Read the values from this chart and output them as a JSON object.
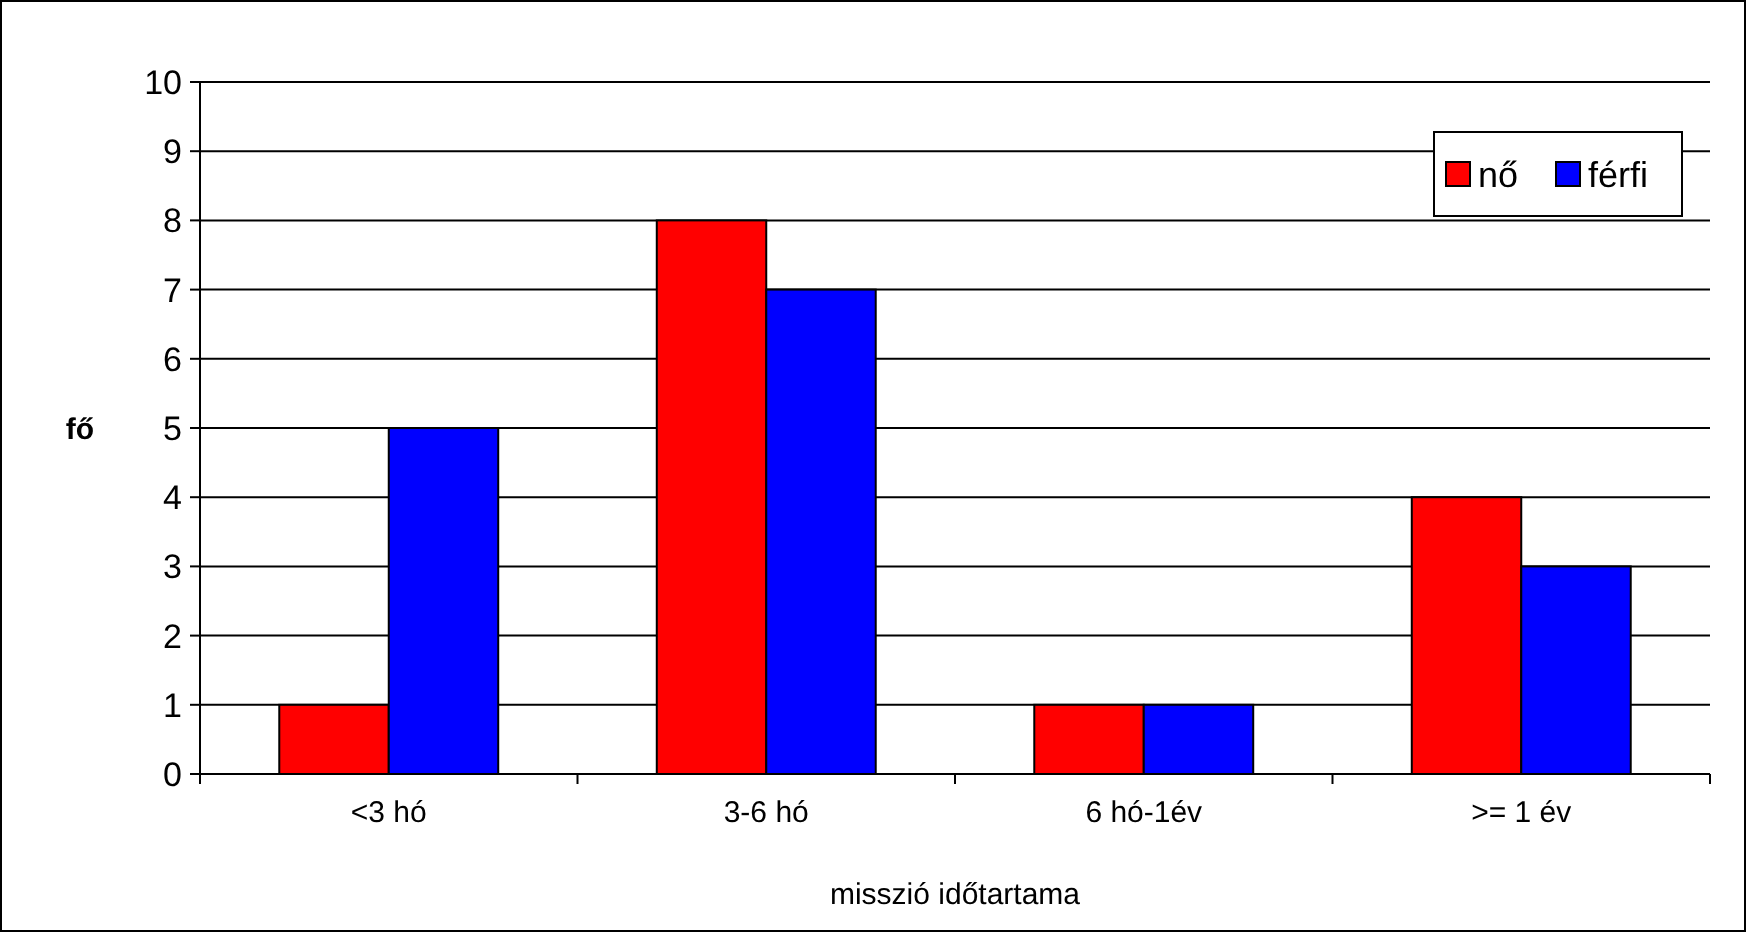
{
  "chart_data": {
    "type": "bar",
    "xlabel": "misszió időtartama",
    "ylabel": "fő",
    "categories": [
      "<3 hó",
      "3-6 hó",
      "6 hó-1év",
      ">= 1 év"
    ],
    "series": [
      {
        "name": "nő",
        "color": "#ff0000",
        "values": [
          1,
          8,
          1,
          4
        ]
      },
      {
        "name": "férfi",
        "color": "#0000ff",
        "values": [
          5,
          7,
          1,
          3
        ]
      }
    ],
    "ylim": [
      0,
      10
    ],
    "yticks": [
      0,
      1,
      2,
      3,
      4,
      5,
      6,
      7,
      8,
      9,
      10
    ],
    "grid": "y",
    "legend": "top right"
  }
}
